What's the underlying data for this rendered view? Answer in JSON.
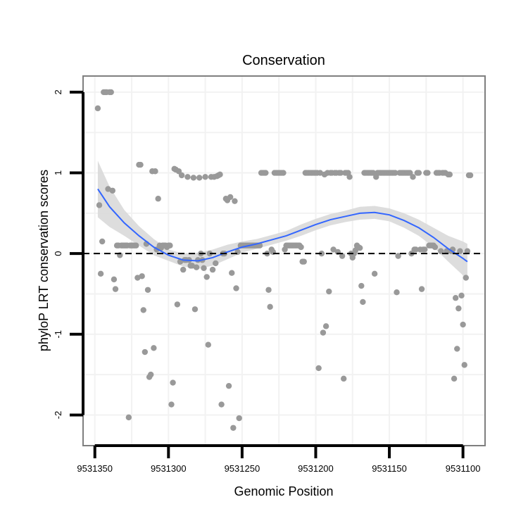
{
  "chart_data": {
    "type": "scatter",
    "title": "Conservation",
    "xlabel": "Genomic Position",
    "ylabel": "phyloP LRT conservation scores",
    "xlim": [
      9531358,
      9531085
    ],
    "ylim": [
      -2.38,
      2.2
    ],
    "x_reversed": true,
    "x_ticks": [
      9531350,
      9531300,
      9531250,
      9531200,
      9531150,
      9531100
    ],
    "x_tick_labels": [
      "9531350",
      "9531300",
      "9531250",
      "9531200",
      "9531150",
      "9531100"
    ],
    "y_ticks": [
      -2,
      -1,
      0,
      1,
      2
    ],
    "y_tick_labels": [
      "-2",
      "-1",
      "0",
      "1",
      "2"
    ],
    "reference_line": 0,
    "grid": true,
    "colors": {
      "points": "#999999",
      "smooth_line": "#3366ff",
      "confidence_band": "#d9d9d9",
      "grid": "#f2f2f2",
      "frame": "#7f7f7f"
    },
    "series": [
      {
        "name": "phyloP",
        "points": [
          [
            9531348,
            1.8
          ],
          [
            9531347,
            0.6
          ],
          [
            9531346,
            -0.25
          ],
          [
            9531345,
            0.15
          ],
          [
            9531344,
            2.0
          ],
          [
            9531343,
            2.0
          ],
          [
            9531342,
            2.0
          ],
          [
            9531341,
            0.8
          ],
          [
            9531340,
            2.0
          ],
          [
            9531339,
            2.0
          ],
          [
            9531338,
            0.78
          ],
          [
            9531337,
            -0.32
          ],
          [
            9531336,
            -0.44
          ],
          [
            9531335,
            0.1
          ],
          [
            9531334,
            0.1
          ],
          [
            9531333,
            -0.02
          ],
          [
            9531332,
            0.1
          ],
          [
            9531331,
            0.1
          ],
          [
            9531330,
            0.1
          ],
          [
            9531329,
            0.1
          ],
          [
            9531328,
            0.1
          ],
          [
            9531327,
            -2.03
          ],
          [
            9531326,
            0.1
          ],
          [
            9531325,
            0.1
          ],
          [
            9531324,
            0.1
          ],
          [
            9531323,
            0.1
          ],
          [
            9531322,
            0.1
          ],
          [
            9531321,
            -0.3
          ],
          [
            9531320,
            1.1
          ],
          [
            9531319,
            1.1
          ],
          [
            9531318,
            -0.28
          ],
          [
            9531317,
            -0.7
          ],
          [
            9531316,
            -1.22
          ],
          [
            9531315,
            0.12
          ],
          [
            9531314,
            -0.45
          ],
          [
            9531313,
            -1.53
          ],
          [
            9531312,
            -1.5
          ],
          [
            9531311,
            1.02
          ],
          [
            9531310,
            -1.17
          ],
          [
            9531309,
            1.02
          ],
          [
            9531308,
            0.05
          ],
          [
            9531307,
            0.68
          ],
          [
            9531306,
            0.1
          ],
          [
            9531305,
            0.07
          ],
          [
            9531304,
            0.1
          ],
          [
            9531303,
            0.1
          ],
          [
            9531302,
            0.1
          ],
          [
            9531301,
            0.08
          ],
          [
            9531300,
            0.1
          ],
          [
            9531299,
            0.1
          ],
          [
            9531298,
            -1.87
          ],
          [
            9531297,
            -1.6
          ],
          [
            9531296,
            1.05
          ],
          [
            9531295,
            1.04
          ],
          [
            9531294,
            -0.63
          ],
          [
            9531293,
            1.02
          ],
          [
            9531292,
            -0.1
          ],
          [
            9531291,
            0.97
          ],
          [
            9531290,
            -0.2
          ],
          [
            9531289,
            -0.08
          ],
          [
            9531288,
            -0.08
          ],
          [
            9531287,
            0.95
          ],
          [
            9531286,
            -0.08
          ],
          [
            9531285,
            -0.15
          ],
          [
            9531284,
            -0.15
          ],
          [
            9531283,
            0.94
          ],
          [
            9531282,
            -0.69
          ],
          [
            9531281,
            -0.17
          ],
          [
            9531280,
            -0.08
          ],
          [
            9531279,
            0.94
          ],
          [
            9531278,
            0.0
          ],
          [
            9531277,
            -0.08
          ],
          [
            9531276,
            -0.18
          ],
          [
            9531275,
            0.95
          ],
          [
            9531274,
            -0.29
          ],
          [
            9531273,
            -1.13
          ],
          [
            9531272,
            0.0
          ],
          [
            9531271,
            0.95
          ],
          [
            9531270,
            -0.2
          ],
          [
            9531269,
            0.95
          ],
          [
            9531268,
            -0.12
          ],
          [
            9531267,
            0.96
          ],
          [
            9531266,
            0.97
          ],
          [
            9531265,
            0.98
          ],
          [
            9531264,
            -1.87
          ],
          [
            9531263,
            0.0
          ],
          [
            9531262,
            0.0
          ],
          [
            9531261,
            0.68
          ],
          [
            9531260,
            0.66
          ],
          [
            9531259,
            -1.64
          ],
          [
            9531258,
            0.7
          ],
          [
            9531257,
            -0.24
          ],
          [
            9531256,
            -2.16
          ],
          [
            9531255,
            0.65
          ],
          [
            9531254,
            -0.43
          ],
          [
            9531253,
            0.02
          ],
          [
            9531252,
            -2.04
          ],
          [
            9531251,
            0.1
          ],
          [
            9531250,
            0.1
          ],
          [
            9531249,
            0.1
          ],
          [
            9531248,
            0.1
          ],
          [
            9531247,
            0.1
          ],
          [
            9531246,
            0.1
          ],
          [
            9531245,
            0.1
          ],
          [
            9531244,
            0.1
          ],
          [
            9531243,
            0.1
          ],
          [
            9531242,
            0.1
          ],
          [
            9531241,
            0.1
          ],
          [
            9531240,
            0.1
          ],
          [
            9531239,
            0.1
          ],
          [
            9531238,
            0.1
          ],
          [
            9531237,
            1.0
          ],
          [
            9531236,
            1.0
          ],
          [
            9531235,
            1.0
          ],
          [
            9531234,
            1.0
          ],
          [
            9531233,
            0.0
          ],
          [
            9531232,
            -0.45
          ],
          [
            9531231,
            -0.66
          ],
          [
            9531230,
            0.05
          ],
          [
            9531229,
            0.02
          ],
          [
            9531228,
            1.0
          ],
          [
            9531227,
            1.0
          ],
          [
            9531226,
            1.0
          ],
          [
            9531225,
            1.0
          ],
          [
            9531224,
            1.0
          ],
          [
            9531223,
            1.0
          ],
          [
            9531222,
            1.0
          ],
          [
            9531221,
            0.05
          ],
          [
            9531220,
            0.1
          ],
          [
            9531219,
            0.1
          ],
          [
            9531218,
            0.1
          ],
          [
            9531217,
            0.1
          ],
          [
            9531216,
            0.1
          ],
          [
            9531215,
            0.1
          ],
          [
            9531214,
            0.1
          ],
          [
            9531213,
            0.1
          ],
          [
            9531212,
            0.1
          ],
          [
            9531211,
            0.1
          ],
          [
            9531210,
            0.08
          ],
          [
            9531209,
            -0.1
          ],
          [
            9531208,
            -0.1
          ],
          [
            9531207,
            1.0
          ],
          [
            9531206,
            1.0
          ],
          [
            9531205,
            1.0
          ],
          [
            9531204,
            1.0
          ],
          [
            9531203,
            1.0
          ],
          [
            9531202,
            1.0
          ],
          [
            9531201,
            1.0
          ],
          [
            9531200,
            1.0
          ],
          [
            9531199,
            1.0
          ],
          [
            9531198,
            -1.42
          ],
          [
            9531197,
            1.0
          ],
          [
            9531196,
            0.0
          ],
          [
            9531195,
            -0.98
          ],
          [
            9531194,
            0.98
          ],
          [
            9531193,
            -0.9
          ],
          [
            9531192,
            1.0
          ],
          [
            9531191,
            -0.47
          ],
          [
            9531190,
            1.0
          ],
          [
            9531189,
            1.0
          ],
          [
            9531188,
            0.05
          ],
          [
            9531187,
            1.0
          ],
          [
            9531186,
            1.0
          ],
          [
            9531185,
            0.02
          ],
          [
            9531184,
            1.0
          ],
          [
            9531183,
            1.0
          ],
          [
            9531182,
            -0.03
          ],
          [
            9531181,
            -1.55
          ],
          [
            9531180,
            1.0
          ],
          [
            9531179,
            1.0
          ],
          [
            9531178,
            1.0
          ],
          [
            9531177,
            0.95
          ],
          [
            9531176,
            0.0
          ],
          [
            9531175,
            -0.05
          ],
          [
            9531174,
            0.0
          ],
          [
            9531173,
            0.04
          ],
          [
            9531172,
            0.1
          ],
          [
            9531171,
            0.08
          ],
          [
            9531170,
            0.07
          ],
          [
            9531169,
            -0.4
          ],
          [
            9531168,
            -0.6
          ],
          [
            9531167,
            1.0
          ],
          [
            9531166,
            1.0
          ],
          [
            9531165,
            1.0
          ],
          [
            9531164,
            1.0
          ],
          [
            9531163,
            1.0
          ],
          [
            9531162,
            1.0
          ],
          [
            9531161,
            1.0
          ],
          [
            9531160,
            -0.25
          ],
          [
            9531159,
            0.95
          ],
          [
            9531158,
            1.0
          ],
          [
            9531157,
            1.0
          ],
          [
            9531156,
            1.0
          ],
          [
            9531155,
            1.0
          ],
          [
            9531154,
            1.0
          ],
          [
            9531153,
            1.0
          ],
          [
            9531152,
            1.0
          ],
          [
            9531151,
            1.0
          ],
          [
            9531150,
            1.0
          ],
          [
            9531149,
            1.0
          ],
          [
            9531148,
            1.0
          ],
          [
            9531147,
            1.0
          ],
          [
            9531146,
            1.0
          ],
          [
            9531145,
            -0.48
          ],
          [
            9531144,
            -0.03
          ],
          [
            9531143,
            1.0
          ],
          [
            9531142,
            1.0
          ],
          [
            9531141,
            1.0
          ],
          [
            9531140,
            1.0
          ],
          [
            9531139,
            1.0
          ],
          [
            9531138,
            1.0
          ],
          [
            9531137,
            1.0
          ],
          [
            9531136,
            1.0
          ],
          [
            9531135,
            0.0
          ],
          [
            9531134,
            0.95
          ],
          [
            9531133,
            0.05
          ],
          [
            9531132,
            0.05
          ],
          [
            9531131,
            1.0
          ],
          [
            9531130,
            1.0
          ],
          [
            9531129,
            0.05
          ],
          [
            9531128,
            -0.44
          ],
          [
            9531127,
            0.05
          ],
          [
            9531126,
            0.05
          ],
          [
            9531125,
            1.0
          ],
          [
            9531124,
            1.0
          ],
          [
            9531123,
            0.1
          ],
          [
            9531122,
            0.1
          ],
          [
            9531121,
            0.1
          ],
          [
            9531120,
            0.1
          ],
          [
            9531119,
            0.08
          ],
          [
            9531118,
            1.0
          ],
          [
            9531117,
            1.0
          ],
          [
            9531116,
            1.0
          ],
          [
            9531115,
            0.03
          ],
          [
            9531114,
            1.0
          ],
          [
            9531113,
            1.0
          ],
          [
            9531112,
            1.0
          ],
          [
            9531111,
            0.03
          ],
          [
            9531110,
            0.98
          ],
          [
            9531109,
            0.98
          ],
          [
            9531108,
            0.03
          ],
          [
            9531107,
            0.05
          ],
          [
            9531106,
            -1.55
          ],
          [
            9531105,
            -0.55
          ],
          [
            9531104,
            -1.18
          ],
          [
            9531103,
            -0.68
          ],
          [
            9531102,
            0.03
          ],
          [
            9531101,
            -0.52
          ],
          [
            9531100,
            -0.88
          ],
          [
            9531099,
            -1.38
          ],
          [
            9531098,
            -0.3
          ],
          [
            9531097,
            0.03
          ],
          [
            9531096,
            0.97
          ],
          [
            9531095,
            0.97
          ]
        ]
      },
      {
        "name": "loess smooth",
        "x": [
          9531348,
          9531340,
          9531330,
          9531320,
          9531310,
          9531300,
          9531290,
          9531280,
          9531270,
          9531260,
          9531250,
          9531240,
          9531230,
          9531220,
          9531210,
          9531200,
          9531190,
          9531180,
          9531170,
          9531160,
          9531150,
          9531140,
          9531130,
          9531120,
          9531110,
          9531100,
          9531097
        ],
        "y": [
          0.8,
          0.58,
          0.38,
          0.22,
          0.08,
          -0.02,
          -0.08,
          -0.09,
          -0.05,
          0.02,
          0.08,
          0.12,
          0.17,
          0.22,
          0.29,
          0.36,
          0.42,
          0.46,
          0.5,
          0.51,
          0.48,
          0.41,
          0.32,
          0.2,
          0.06,
          -0.06,
          -0.1
        ],
        "lower": [
          0.45,
          0.33,
          0.22,
          0.1,
          -0.02,
          -0.09,
          -0.16,
          -0.19,
          -0.15,
          -0.07,
          0.01,
          0.06,
          0.11,
          0.16,
          0.22,
          0.29,
          0.35,
          0.39,
          0.42,
          0.43,
          0.4,
          0.32,
          0.22,
          0.08,
          -0.1,
          -0.27,
          -0.32
        ],
        "upper": [
          1.15,
          0.83,
          0.54,
          0.34,
          0.18,
          0.05,
          0.0,
          0.01,
          0.05,
          0.11,
          0.15,
          0.18,
          0.23,
          0.28,
          0.36,
          0.43,
          0.49,
          0.53,
          0.58,
          0.59,
          0.56,
          0.5,
          0.42,
          0.32,
          0.22,
          0.15,
          0.12
        ]
      }
    ]
  }
}
